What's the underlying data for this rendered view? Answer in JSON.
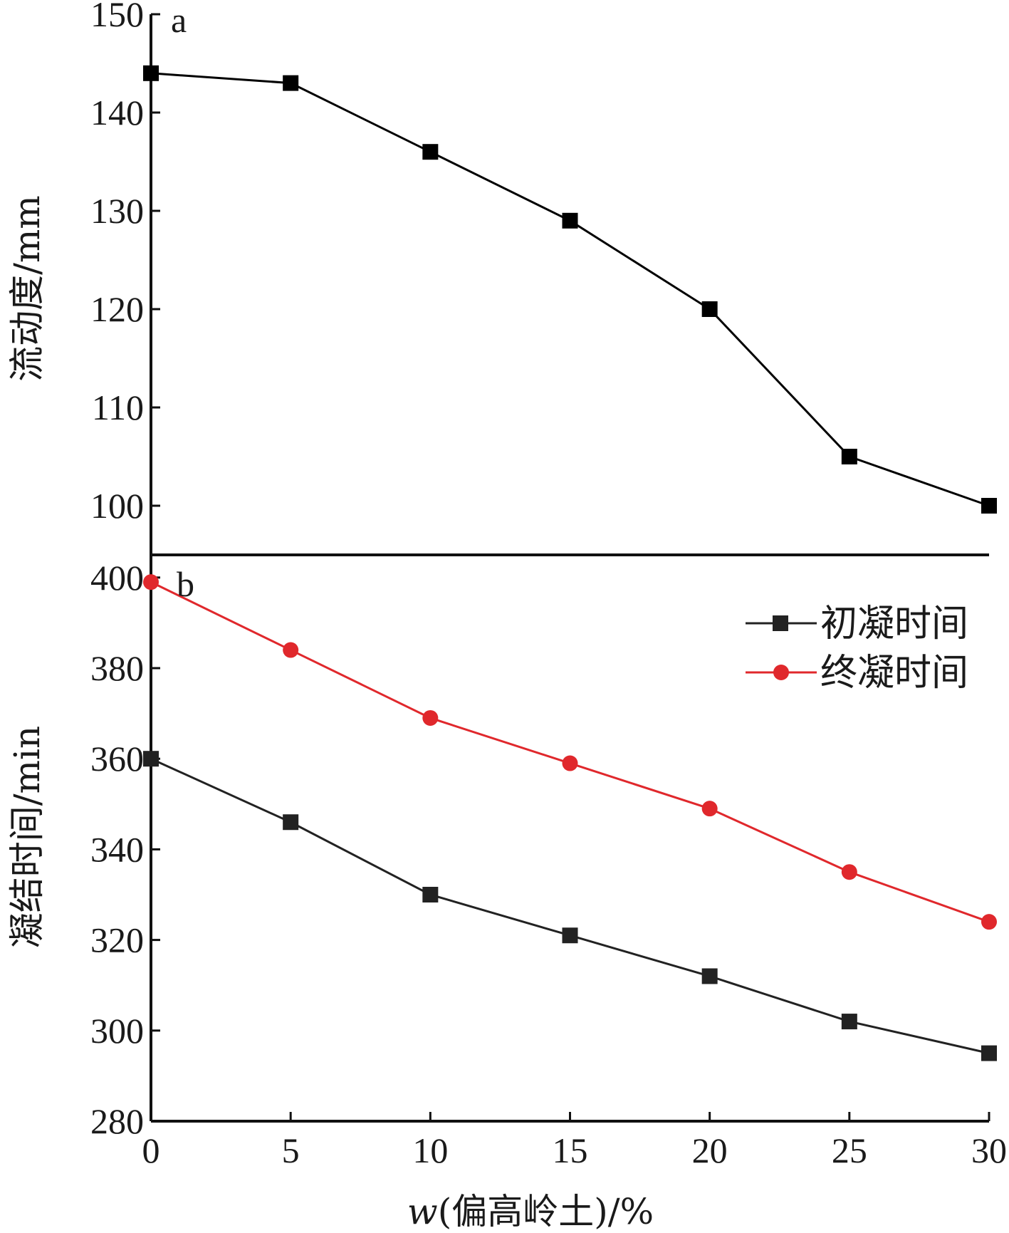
{
  "chart_data": [
    {
      "type": "line",
      "panel_label": "a",
      "x": [
        0,
        5,
        10,
        15,
        20,
        25,
        30
      ],
      "series": [
        {
          "values": [
            144,
            143,
            136,
            129,
            120,
            105,
            100
          ],
          "color": "#000000",
          "marker": "square"
        }
      ],
      "ylabel": "流动度/mm",
      "ylim": [
        95,
        150
      ],
      "yticks": [
        100,
        110,
        120,
        130,
        140,
        150
      ]
    },
    {
      "type": "line",
      "panel_label": "b",
      "x": [
        0,
        5,
        10,
        15,
        20,
        25,
        30
      ],
      "series": [
        {
          "name": "初凝时间",
          "values": [
            360,
            346,
            330,
            321,
            312,
            302,
            295
          ],
          "color": "#222222",
          "marker": "square"
        },
        {
          "name": "终凝时间",
          "values": [
            399,
            384,
            369,
            359,
            349,
            335,
            324
          ],
          "color": "#e0282c",
          "marker": "circle"
        }
      ],
      "ylabel": "凝结时间/min",
      "ylim": [
        280,
        405
      ],
      "yticks": [
        280,
        300,
        320,
        340,
        360,
        380,
        400
      ],
      "legend": "top-right"
    }
  ],
  "x_axis": {
    "ticks": [
      0,
      5,
      10,
      15,
      20,
      25,
      30
    ],
    "label_var": "w",
    "label_rest": "(偏高岭土)/%"
  }
}
